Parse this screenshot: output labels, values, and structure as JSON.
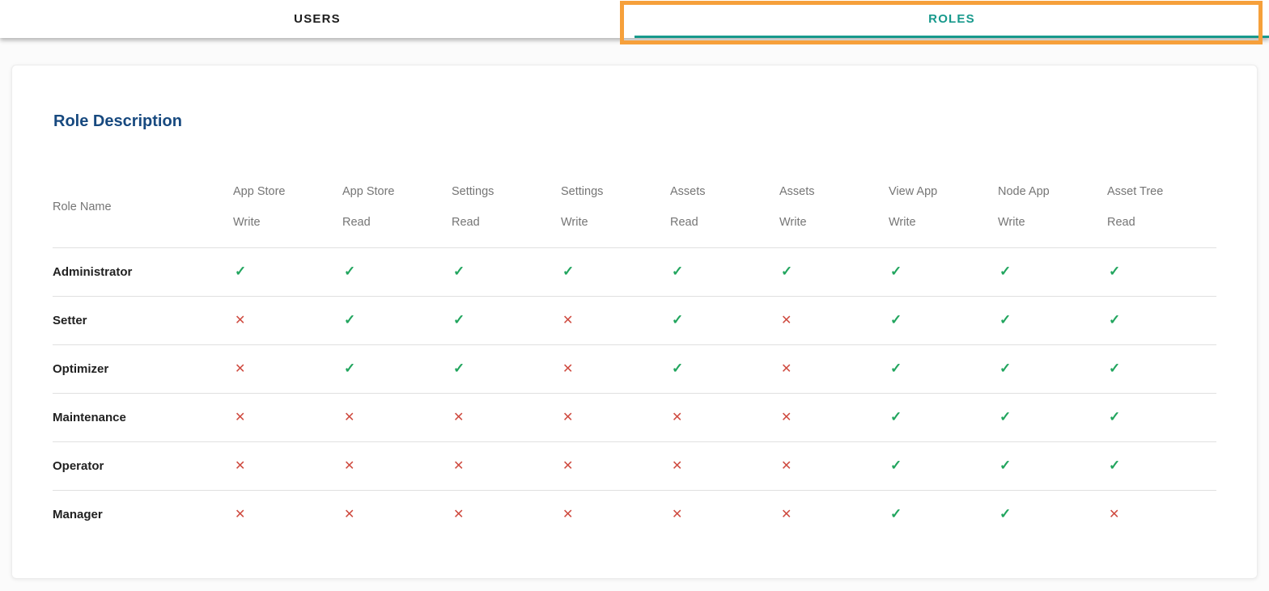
{
  "tabs": {
    "users_label": "USERS",
    "roles_label": "ROLES",
    "active": "roles"
  },
  "annotation": {
    "type": "highlight-box",
    "target": "roles-tab",
    "color": "#f6a03b"
  },
  "card": {
    "title": "Role Description"
  },
  "table": {
    "role_name_header": "Role Name",
    "columns": [
      {
        "group": "App Store",
        "perm": "Write"
      },
      {
        "group": "App Store",
        "perm": "Read"
      },
      {
        "group": "Settings",
        "perm": "Read"
      },
      {
        "group": "Settings",
        "perm": "Write"
      },
      {
        "group": "Assets",
        "perm": "Read"
      },
      {
        "group": "Assets",
        "perm": "Write"
      },
      {
        "group": "View App",
        "perm": "Write"
      },
      {
        "group": "Node App",
        "perm": "Write"
      },
      {
        "group": "Asset Tree",
        "perm": "Read"
      }
    ],
    "rows": [
      {
        "role": "Administrator",
        "perms": [
          true,
          true,
          true,
          true,
          true,
          true,
          true,
          true,
          true
        ]
      },
      {
        "role": "Setter",
        "perms": [
          false,
          true,
          true,
          false,
          true,
          false,
          true,
          true,
          true
        ]
      },
      {
        "role": "Optimizer",
        "perms": [
          false,
          true,
          true,
          false,
          true,
          false,
          true,
          true,
          true
        ]
      },
      {
        "role": "Maintenance",
        "perms": [
          false,
          false,
          false,
          false,
          false,
          false,
          true,
          true,
          true
        ]
      },
      {
        "role": "Operator",
        "perms": [
          false,
          false,
          false,
          false,
          false,
          false,
          true,
          true,
          true
        ]
      },
      {
        "role": "Manager",
        "perms": [
          false,
          false,
          false,
          false,
          false,
          false,
          true,
          true,
          false
        ]
      }
    ]
  },
  "icons": {
    "allowed_glyph": "✓",
    "denied_glyph": "✕"
  },
  "colors": {
    "accent_teal": "#17998c",
    "highlight_orange": "#f6a03b",
    "heading_navy": "#17497f",
    "check_green": "#21a55e",
    "cross_red": "#cf4b40",
    "header_gray": "#757575",
    "divider_gray": "#e0e0e0"
  }
}
